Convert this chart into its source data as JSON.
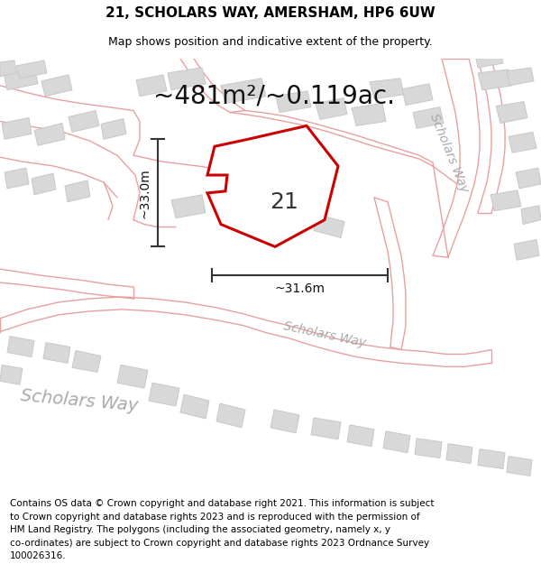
{
  "title_line1": "21, SCHOLARS WAY, AMERSHAM, HP6 6UW",
  "title_line2": "Map shows position and indicative extent of the property.",
  "area_text": "~481m²/~0.119ac.",
  "label_number": "21",
  "dim_vertical": "~33.0m",
  "dim_horizontal": "~31.6m",
  "footer_lines": [
    "Contains OS data © Crown copyright and database right 2021. This information is subject",
    "to Crown copyright and database rights 2023 and is reproduced with the permission of",
    "HM Land Registry. The polygons (including the associated geometry, namely x, y",
    "co-ordinates) are subject to Crown copyright and database rights 2023 Ordnance Survey",
    "100026316."
  ],
  "bg_color": "#f0f0f0",
  "road_color": "#e8a0a0",
  "road_fill": "#f8f0f0",
  "building_color": "#d8d8d8",
  "building_edge": "#c8c8c8",
  "property_color": "#ffffff",
  "property_edge": "#cc0000",
  "dim_line_color": "#333333",
  "road_label_color": "#aaaaaa",
  "title_fontsize": 11,
  "subtitle_fontsize": 9,
  "area_fontsize": 20,
  "label_fontsize": 18,
  "dim_fontsize": 10,
  "footer_fontsize": 7.5,
  "road_label_fontsize_sm": 10,
  "road_label_fontsize_lg": 14
}
